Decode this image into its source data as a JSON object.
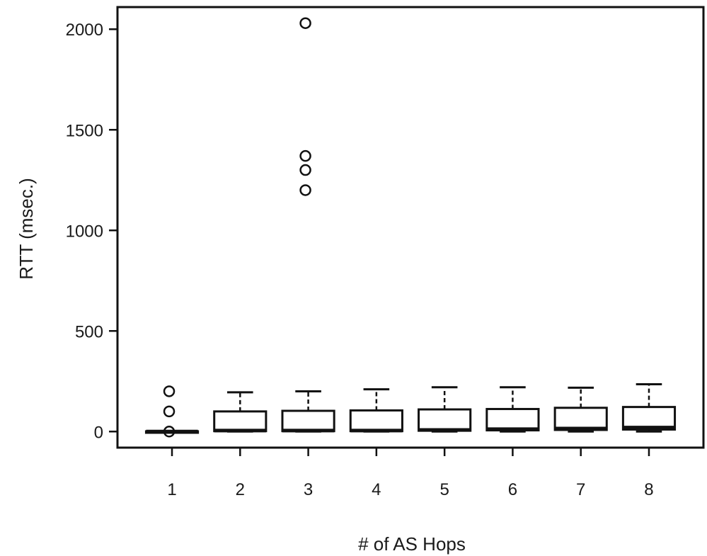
{
  "chart_data": {
    "type": "boxplot",
    "title": "",
    "xlabel": "# of AS Hops",
    "ylabel": "RTT (msec.)",
    "ylim": [
      -80,
      2110
    ],
    "yticks": [
      0,
      500,
      1000,
      1500,
      2000
    ],
    "grid": false,
    "categories": [
      "1",
      "2",
      "3",
      "4",
      "5",
      "6",
      "7",
      "8"
    ],
    "boxes": [
      {
        "category": "1",
        "whisker_low": 0,
        "q1": 0,
        "median": 0,
        "q3": 1,
        "whisker_high": 2,
        "outliers": [
          0,
          100,
          200
        ]
      },
      {
        "category": "2",
        "whisker_low": 0,
        "q1": 2,
        "median": 5,
        "q3": 100,
        "whisker_high": 195,
        "outliers": []
      },
      {
        "category": "3",
        "whisker_low": 0,
        "q1": 2,
        "median": 5,
        "q3": 103,
        "whisker_high": 200,
        "outliers": [
          1200,
          1300,
          1370,
          2030
        ]
      },
      {
        "category": "4",
        "whisker_low": 0,
        "q1": 2,
        "median": 5,
        "q3": 105,
        "whisker_high": 210,
        "outliers": []
      },
      {
        "category": "5",
        "whisker_low": 0,
        "q1": 4,
        "median": 8,
        "q3": 110,
        "whisker_high": 220,
        "outliers": []
      },
      {
        "category": "6",
        "whisker_low": 0,
        "q1": 6,
        "median": 12,
        "q3": 112,
        "whisker_high": 220,
        "outliers": []
      },
      {
        "category": "7",
        "whisker_low": 0,
        "q1": 8,
        "median": 15,
        "q3": 118,
        "whisker_high": 218,
        "outliers": []
      },
      {
        "category": "8",
        "whisker_low": 0,
        "q1": 10,
        "median": 20,
        "q3": 122,
        "whisker_high": 235,
        "outliers": []
      }
    ]
  }
}
